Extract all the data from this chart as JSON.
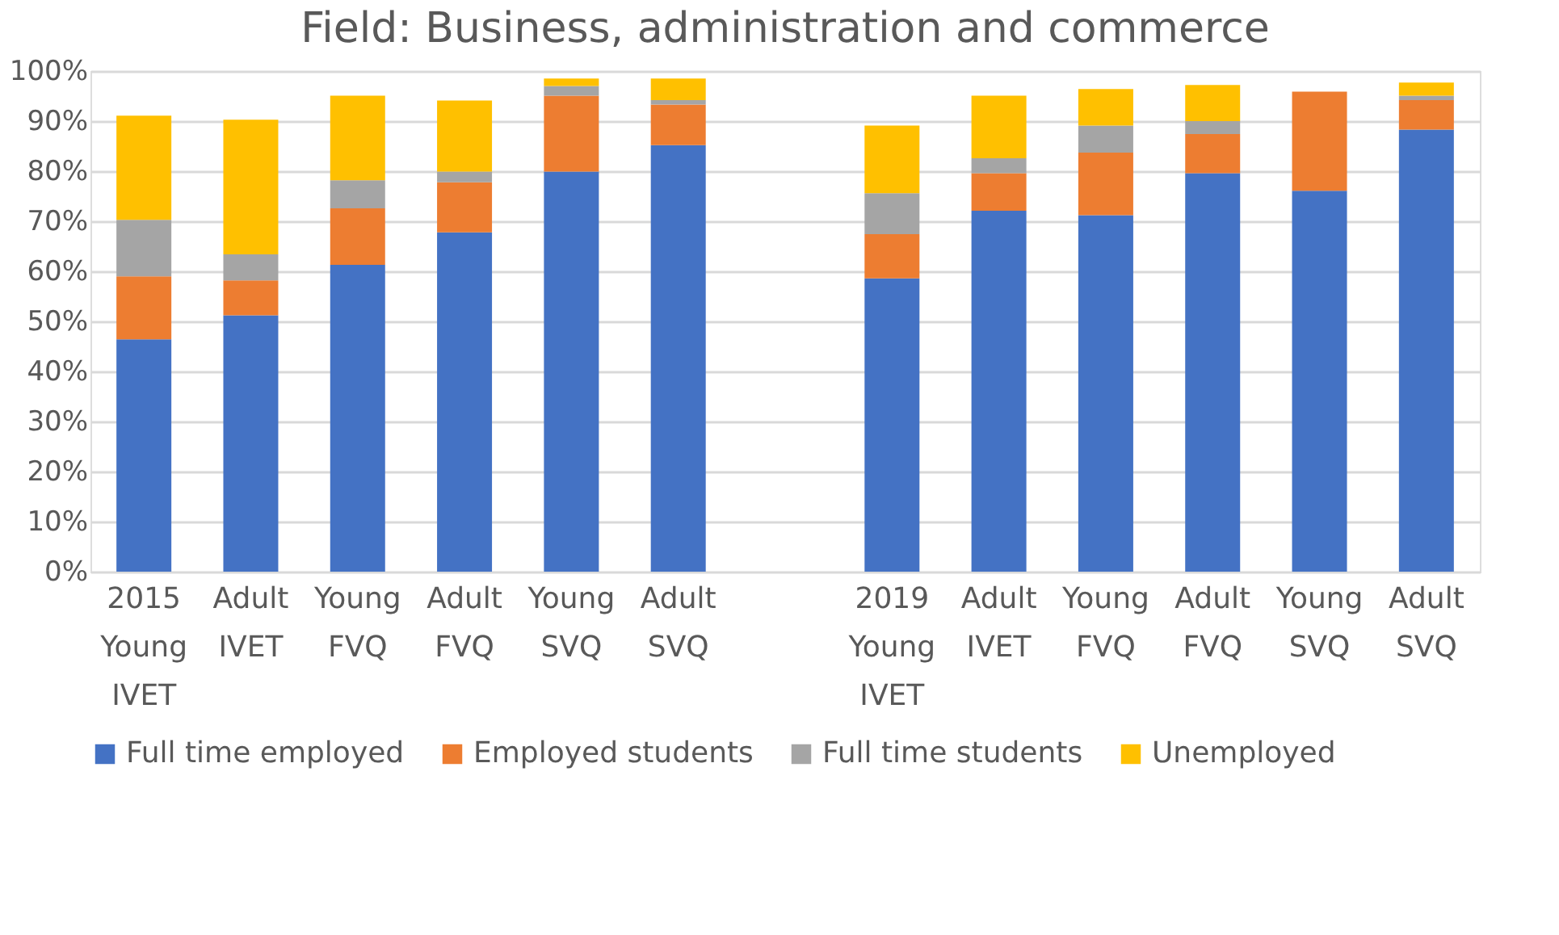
{
  "chart_data": {
    "type": "bar",
    "stacked": true,
    "title": "Field: Business, administration and commerce",
    "categories": [
      "2015 Young IVET",
      "Adult IVET",
      "Young FVQ",
      "Adult FVQ",
      "Young SVQ",
      "Adult SVQ",
      null,
      "2019 Young IVET",
      "Adult IVET",
      "Young FVQ",
      "Adult FVQ",
      "Young SVQ",
      "Adult SVQ"
    ],
    "series": [
      {
        "name": "Full time employed",
        "color": "#4472c4",
        "values": [
          46.4,
          51.2,
          61.3,
          67.8,
          79.9,
          85.2,
          null,
          58.6,
          72.1,
          71.2,
          79.6,
          76.1,
          88.3
        ]
      },
      {
        "name": "Employed students",
        "color": "#ed7d31",
        "values": [
          12.6,
          7.0,
          11.3,
          10.0,
          15.2,
          8.1,
          null,
          8.8,
          7.5,
          12.5,
          7.8,
          19.8,
          5.9
        ]
      },
      {
        "name": "Full time students",
        "color": "#a5a5a5",
        "values": [
          11.3,
          5.2,
          5.6,
          2.1,
          1.9,
          0.9,
          null,
          8.2,
          3.0,
          5.4,
          2.6,
          0,
          0.9
        ]
      },
      {
        "name": "Unemployed",
        "color": "#ffc000",
        "values": [
          20.8,
          26.9,
          16.9,
          14.2,
          1.5,
          4.3,
          null,
          13.5,
          12.5,
          7.3,
          7.2,
          0,
          2.6
        ]
      }
    ],
    "ylim": [
      0,
      100
    ],
    "yticks": [
      {
        "value": 0,
        "label": "0%"
      },
      {
        "value": 10,
        "label": "10%"
      },
      {
        "value": 20,
        "label": "20%"
      },
      {
        "value": 30,
        "label": "30%"
      },
      {
        "value": 40,
        "label": "40%"
      },
      {
        "value": 50,
        "label": "50%"
      },
      {
        "value": 60,
        "label": "60%"
      },
      {
        "value": 70,
        "label": "70%"
      },
      {
        "value": 80,
        "label": "80%"
      },
      {
        "value": 90,
        "label": "90%"
      },
      {
        "value": 100,
        "label": "100%"
      }
    ],
    "grid": "y",
    "legend": "bottom"
  }
}
